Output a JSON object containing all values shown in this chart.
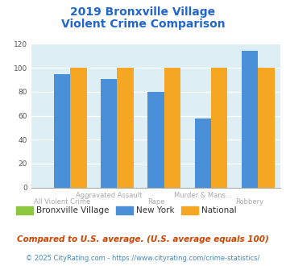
{
  "title_line1": "2019 Bronxville Village",
  "title_line2": "Violent Crime Comparison",
  "groups": [
    {
      "label_top": "Aggravated Assault",
      "label_bot": "All Violent Crime",
      "bronxville": 0,
      "new_york": 95,
      "national": 100
    },
    {
      "label_top": "Aggravated Assault",
      "label_bot": "",
      "bronxville": 0,
      "new_york": 91,
      "national": 100
    },
    {
      "label_top": "Murder & Mans...",
      "label_bot": "Rape",
      "bronxville": 0,
      "new_york": 80,
      "national": 100
    },
    {
      "label_top": "Murder & Mans...",
      "label_bot": "",
      "bronxville": 0,
      "new_york": 58,
      "national": 100
    },
    {
      "label_top": "",
      "label_bot": "Robbery",
      "bronxville": 0,
      "new_york": 114,
      "national": 100
    }
  ],
  "xtick_top": [
    1,
    3
  ],
  "xtick_bot": [
    0,
    2,
    4
  ],
  "xtick_top_labels": [
    "Aggravated Assault",
    "Murder & Mans..."
  ],
  "xtick_bot_labels": [
    "All Violent Crime",
    "Rape",
    "Robbery"
  ],
  "color_bronxville": "#8dc63f",
  "color_newyork": "#4a90d9",
  "color_national": "#f5a623",
  "title_color": "#2266cc",
  "label_color": "#aaaaaa",
  "legend_text_color": "#333333",
  "plot_bg_color": "#ddeef5",
  "ylim": [
    0,
    120
  ],
  "yticks": [
    0,
    20,
    40,
    60,
    80,
    100,
    120
  ],
  "footnote1": "Compared to U.S. average. (U.S. average equals 100)",
  "footnote2": "© 2025 CityRating.com - https://www.cityrating.com/crime-statistics/",
  "footnote1_color": "#cc4400",
  "footnote2_color": "#4488bb"
}
